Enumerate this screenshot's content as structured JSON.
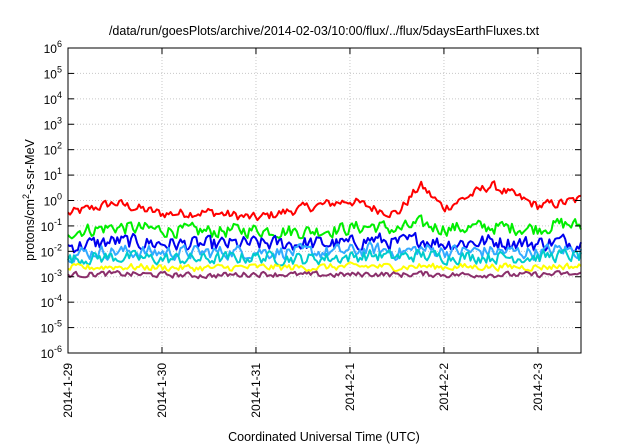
{
  "chart_data": {
    "type": "line",
    "title": "/data/run/goesPlots/archive/2014-02-03/10:00/flux/../flux/5daysEarthFluxes.txt",
    "xlabel": "Coordinated Universal Time (UTC)",
    "ylabel": {
      "prefix": "protons/cm",
      "sup": "2",
      "suffix": "-s-sr-MeV"
    },
    "x_range": [
      "2014-1-29",
      "2014-2-3 11:00"
    ],
    "x_ticks": [
      "2014-1-29",
      "2014-1-30",
      "2014-1-31",
      "2014-2-1",
      "2014-2-2",
      "2014-2-3"
    ],
    "y_scale": "log",
    "ylim": [
      1e-06,
      1000000.0
    ],
    "y_ticks": [
      {
        "base": "10",
        "exp": "-6"
      },
      {
        "base": "10",
        "exp": "-5"
      },
      {
        "base": "10",
        "exp": "-4"
      },
      {
        "base": "10",
        "exp": "-3"
      },
      {
        "base": "10",
        "exp": "-2"
      },
      {
        "base": "10",
        "exp": "-1"
      },
      {
        "base": "10",
        "exp": "0"
      },
      {
        "base": "10",
        "exp": "1"
      },
      {
        "base": "10",
        "exp": "2"
      },
      {
        "base": "10",
        "exp": "3"
      },
      {
        "base": "10",
        "exp": "4"
      },
      {
        "base": "10",
        "exp": "5"
      },
      {
        "base": "10",
        "exp": "6"
      }
    ],
    "grid": true,
    "x_days": [
      0,
      0.5,
      1,
      1.5,
      2,
      2.5,
      3,
      3.25,
      3.5,
      3.75,
      4,
      4.5,
      5,
      5.25,
      5.46
    ],
    "series": [
      {
        "color": "#ff0000",
        "values": [
          0.3,
          0.8,
          0.3,
          0.35,
          0.2,
          0.5,
          1.0,
          0.5,
          0.3,
          4.0,
          0.5,
          4.0,
          0.6,
          0.8,
          1.1
        ]
      },
      {
        "color": "#00ee00",
        "values": [
          0.06,
          0.09,
          0.07,
          0.06,
          0.07,
          0.06,
          0.08,
          0.1,
          0.07,
          0.12,
          0.08,
          0.09,
          0.08,
          0.12,
          0.1
        ]
      },
      {
        "color": "#0000ee",
        "values": [
          0.015,
          0.025,
          0.02,
          0.018,
          0.02,
          0.02,
          0.02,
          0.03,
          0.02,
          0.03,
          0.02,
          0.025,
          0.02,
          0.025,
          0.02
        ]
      },
      {
        "color": "#33aaff",
        "values": [
          0.008,
          0.01,
          0.009,
          0.009,
          0.01,
          0.009,
          0.01,
          0.012,
          0.009,
          0.012,
          0.01,
          0.01,
          0.009,
          0.012,
          0.01
        ]
      },
      {
        "color": "#00cccc",
        "values": [
          0.005,
          0.006,
          0.005,
          0.005,
          0.006,
          0.005,
          0.006,
          0.007,
          0.006,
          0.007,
          0.006,
          0.006,
          0.006,
          0.007,
          0.006
        ]
      },
      {
        "color": "#ffff00",
        "values": [
          0.0022,
          0.0025,
          0.0023,
          0.0022,
          0.0024,
          0.0023,
          0.0025,
          0.0026,
          0.0024,
          0.0026,
          0.0024,
          0.0025,
          0.0024,
          0.0026,
          0.0025
        ]
      },
      {
        "color": "#8b2f6b",
        "values": [
          0.0012,
          0.0013,
          0.0012,
          0.0011,
          0.0013,
          0.0012,
          0.0012,
          0.0013,
          0.0012,
          0.0013,
          0.0012,
          0.0012,
          0.0012,
          0.0013,
          0.0012
        ]
      }
    ]
  }
}
